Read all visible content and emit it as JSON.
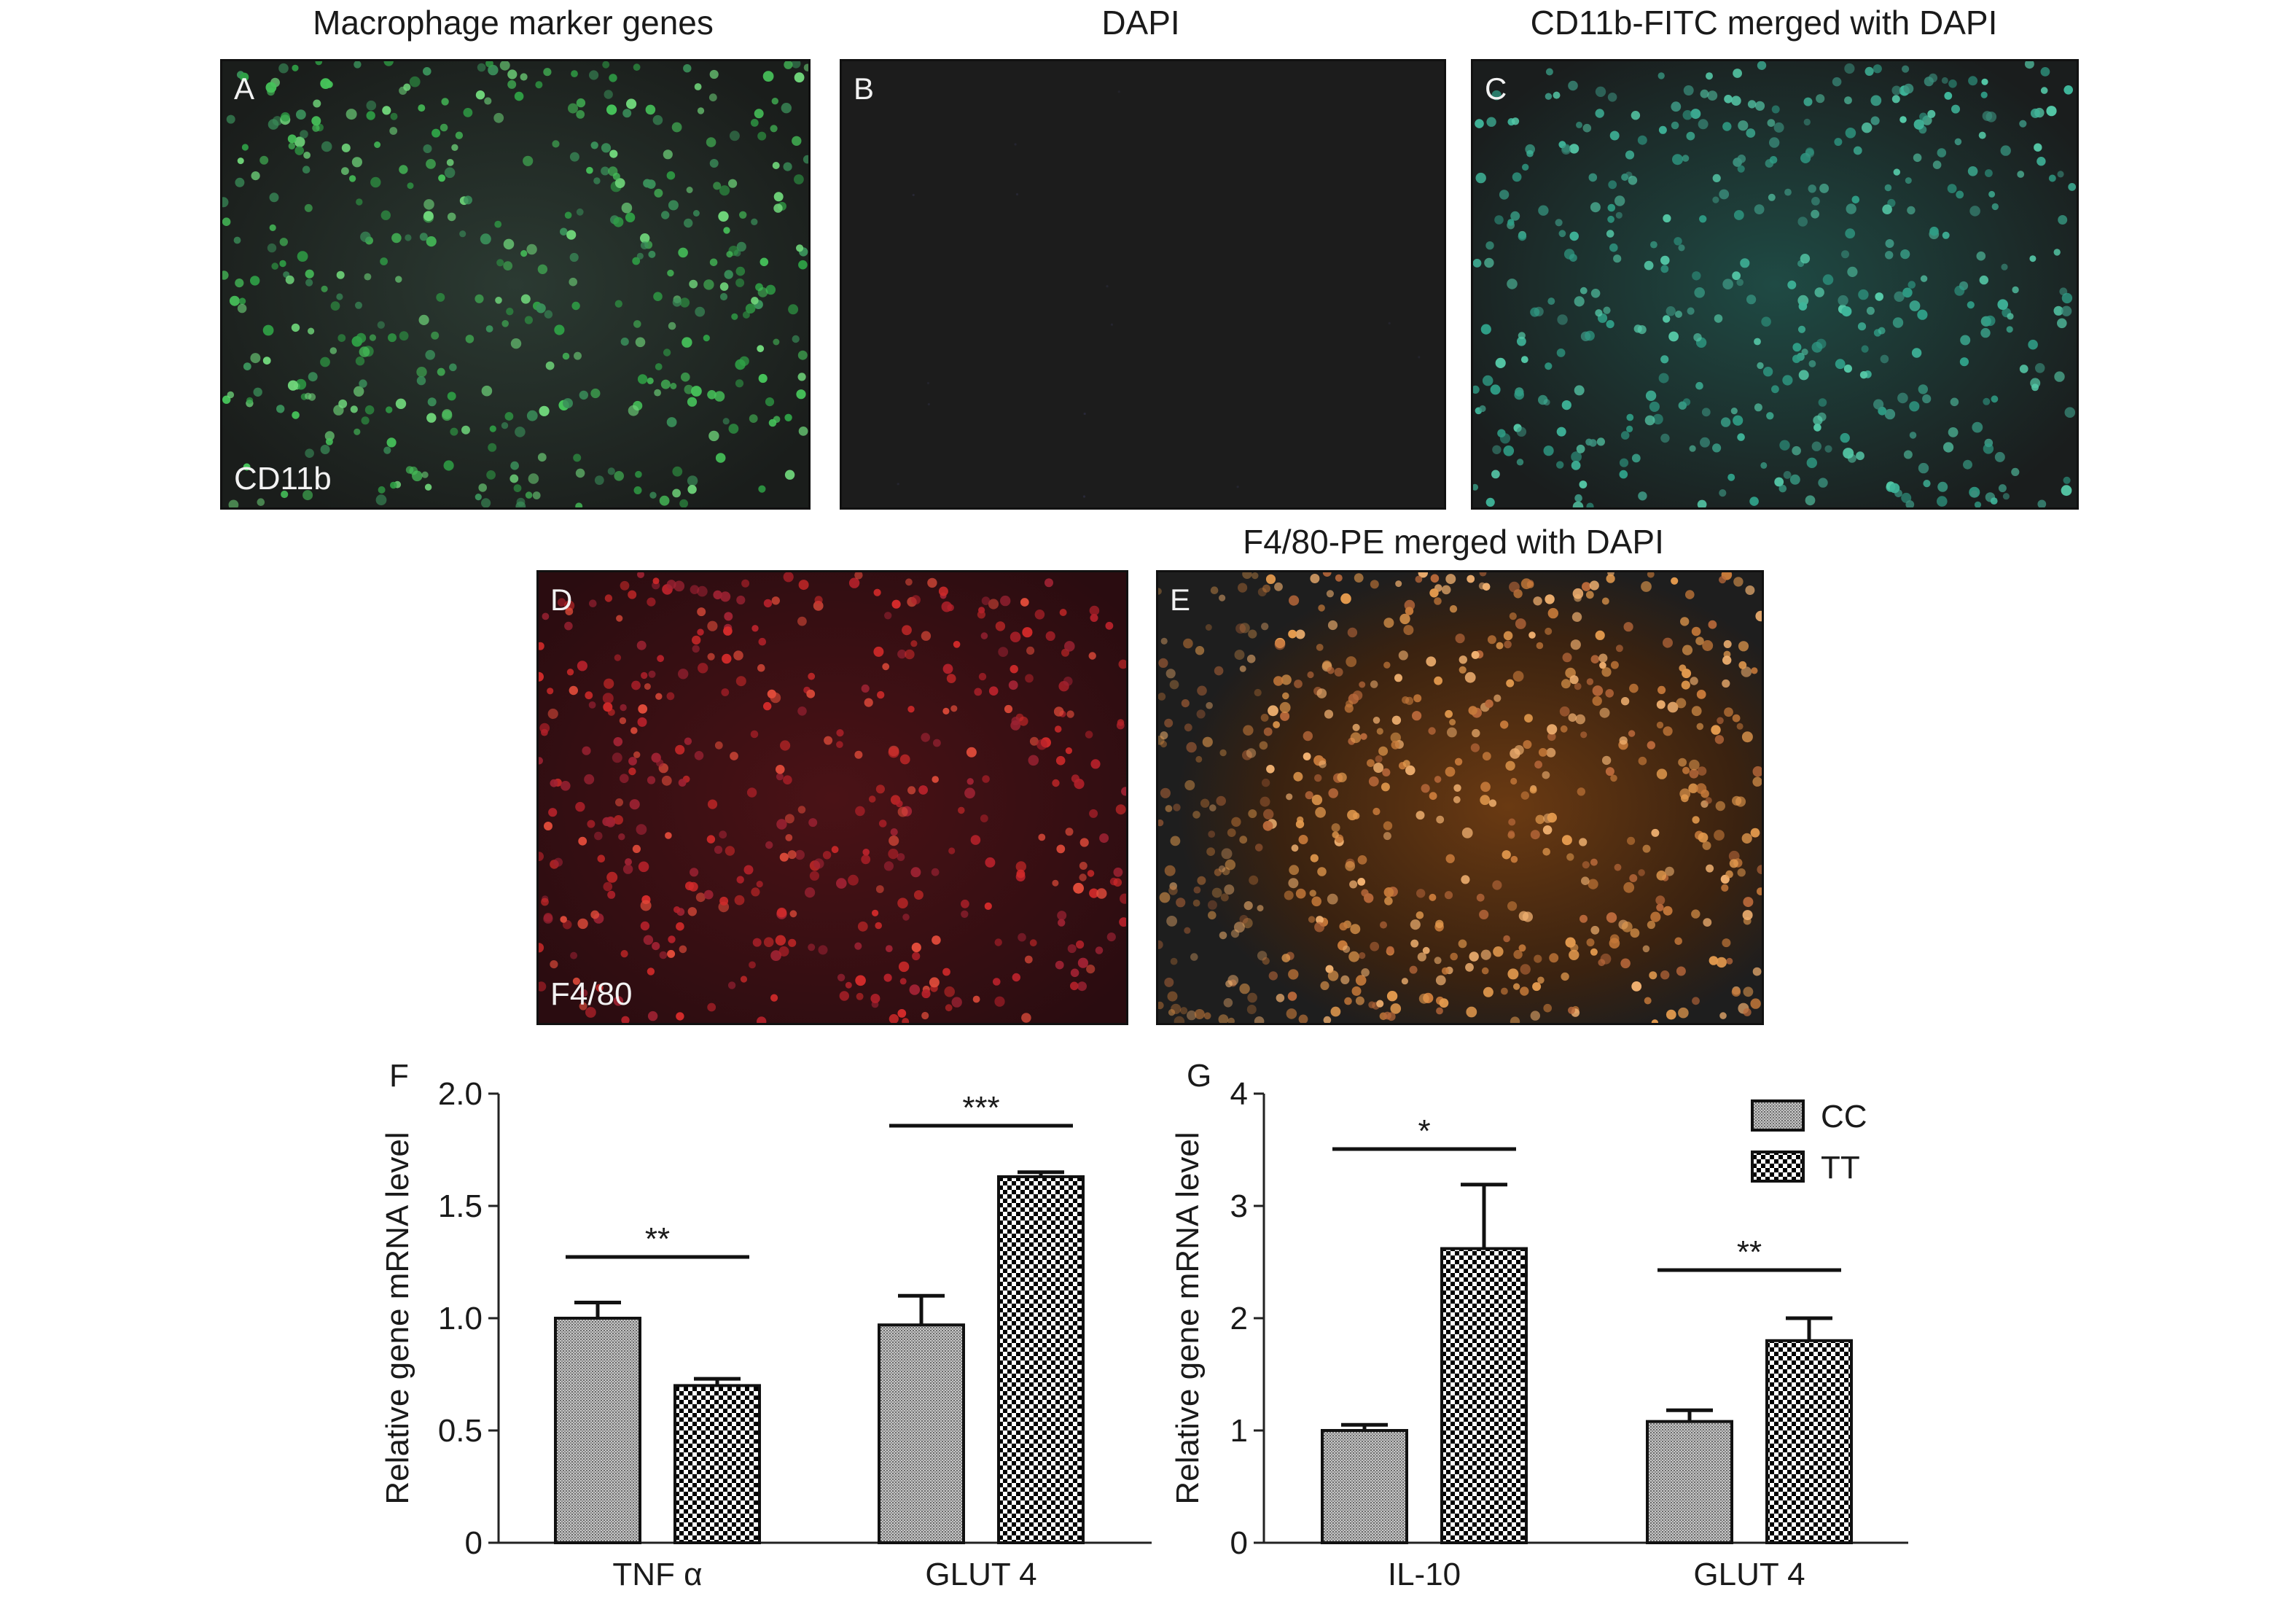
{
  "figure": {
    "row1_titles": {
      "a": "Macrophage marker genes",
      "b": "DAPI",
      "c": "CD11b-FITC merged with DAPI"
    },
    "row2_titles": {
      "e": "F4/80-PE merged with DAPI"
    },
    "panels": [
      {
        "letter": "A",
        "marker": "CD11b",
        "stain": "green"
      },
      {
        "letter": "B",
        "marker": "",
        "stain": "dark"
      },
      {
        "letter": "C",
        "marker": "",
        "stain": "teal"
      },
      {
        "letter": "D",
        "marker": "F4/80",
        "stain": "red"
      },
      {
        "letter": "E",
        "marker": "",
        "stain": "orange"
      }
    ]
  },
  "colors": {
    "cc_fill": "#9a9a9a",
    "tt_fill_light": "#ffffff",
    "tt_fill_dark": "#000000",
    "axis": "#222222"
  },
  "legend": {
    "cc": "CC",
    "tt": "TT"
  },
  "chart_data": [
    {
      "panel": "F",
      "type": "bar",
      "categories": [
        "TNF α",
        "GLUT 4"
      ],
      "series": [
        {
          "name": "CC",
          "values": [
            1.0,
            0.97
          ],
          "errors": [
            0.07,
            0.13
          ]
        },
        {
          "name": "TT",
          "values": [
            0.7,
            1.63
          ],
          "errors": [
            0.03,
            0.02
          ]
        }
      ],
      "significance": [
        "**",
        "***"
      ],
      "ylabel": "Relative gene mRNA level",
      "ylim": [
        0,
        2.0
      ],
      "yticks": [
        "0",
        "0.5",
        "1.0",
        "1.5",
        "2.0"
      ],
      "ytick_values": [
        0,
        0.5,
        1.0,
        1.5,
        2.0
      ]
    },
    {
      "panel": "G",
      "type": "bar",
      "categories": [
        "IL-10",
        "GLUT 4"
      ],
      "series": [
        {
          "name": "CC",
          "values": [
            1.0,
            1.08
          ],
          "errors": [
            0.05,
            0.1
          ]
        },
        {
          "name": "TT",
          "values": [
            2.62,
            1.8
          ],
          "errors": [
            0.57,
            0.2
          ]
        }
      ],
      "significance": [
        "*",
        "**"
      ],
      "ylabel": "Relative gene mRNA level",
      "ylim": [
        0,
        4
      ],
      "yticks": [
        "0",
        "1",
        "2",
        "3",
        "4"
      ],
      "ytick_values": [
        0,
        1,
        2,
        3,
        4
      ],
      "legend_position": "top-right"
    }
  ]
}
